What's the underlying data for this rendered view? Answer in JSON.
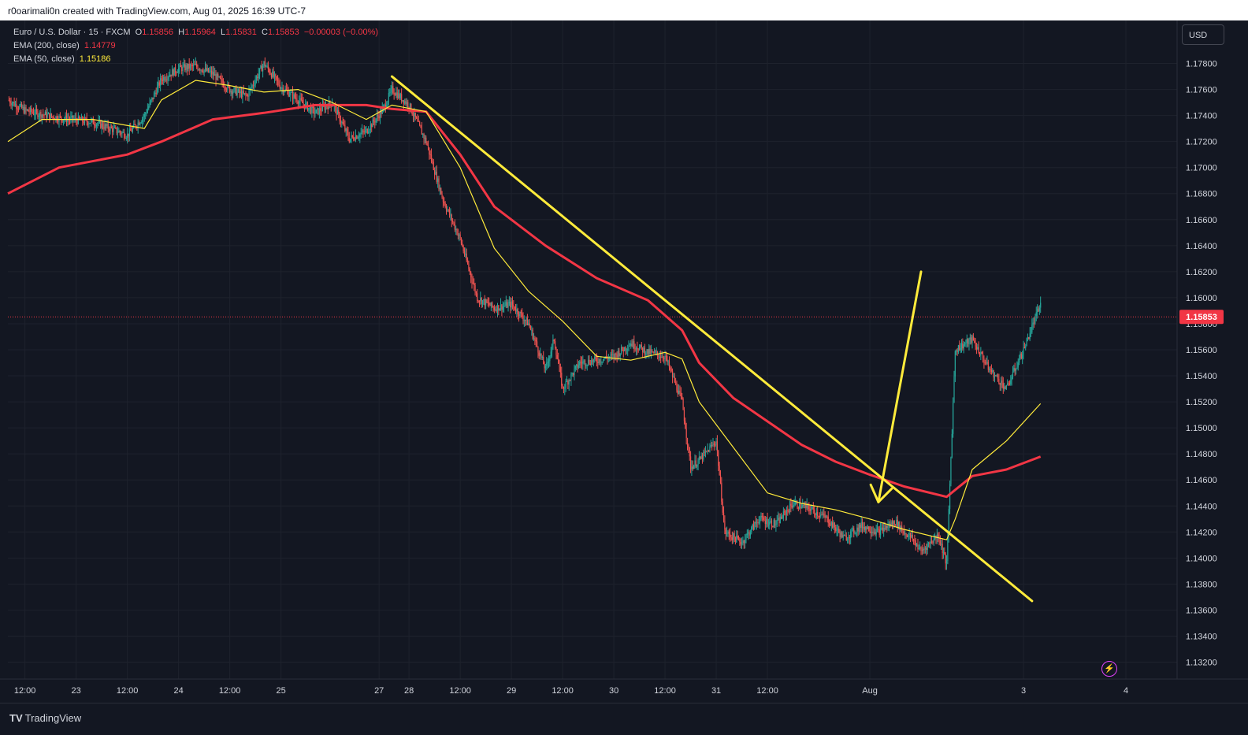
{
  "header": {
    "creator_text": "r0oarimali0n created with TradingView.com, Aug 01, 2025 16:39 UTC-7"
  },
  "legend": {
    "symbol": "Euro / U.S. Dollar · 15 · FXCM",
    "o_label": "O",
    "o_value": "1.15856",
    "h_label": "H",
    "h_value": "1.15964",
    "l_label": "L",
    "l_value": "1.15831",
    "c_label": "C",
    "c_value": "1.15853",
    "change": "−0.00003 (−0.00%)",
    "ema200_label": "EMA (200, close)",
    "ema200_value": "1.14779",
    "ema50_label": "EMA (50, close)",
    "ema50_value": "1.15186"
  },
  "currency_button": "USD",
  "footer": {
    "brand": "TradingView",
    "brand_icon": "tradingview-logo-icon",
    "bolt_icon": "lightning-icon"
  },
  "colors": {
    "background": "#131722",
    "grid": "#1e222d",
    "ema200": "#f23645",
    "ema50": "#ffeb3b",
    "trendline": "#ffeb3b",
    "up": "#26a69a",
    "down": "#ef5350",
    "text": "#d1d4dc",
    "price_tag": "#f23645"
  },
  "chart_data": {
    "type": "candlestick",
    "symbol": "Euro / U.S. Dollar · 15 · FXCM",
    "y_axis": {
      "ticks": [
        "1.17800",
        "1.17600",
        "1.17400",
        "1.17200",
        "1.17000",
        "1.16800",
        "1.16600",
        "1.16400",
        "1.16200",
        "1.16000",
        "1.15800",
        "1.15600",
        "1.15400",
        "1.15200",
        "1.15000",
        "1.14800",
        "1.14600",
        "1.14400",
        "1.14200",
        "1.14000",
        "1.13800",
        "1.13600",
        "1.13400",
        "1.13200"
      ],
      "range": [
        1.1307,
        1.1813
      ]
    },
    "x_axis": {
      "ticks": [
        "12:00",
        "23",
        "12:00",
        "24",
        "12:00",
        "25",
        "27",
        "28",
        "12:00",
        "29",
        "12:00",
        "30",
        "12:00",
        "31",
        "12:00",
        "Aug",
        "3",
        "4"
      ]
    },
    "last_price": "1.15853",
    "price_path": [
      [
        "Jul 22 08:00",
        1.1752
      ],
      [
        "Jul 22 12:00",
        1.1744
      ],
      [
        "Jul 22 20:00",
        1.1738
      ],
      [
        "Jul 23 04:00",
        1.1735
      ],
      [
        "Jul 23 12:00",
        1.1725
      ],
      [
        "Jul 23 16:00",
        1.174
      ],
      [
        "Jul 23 20:00",
        1.1768
      ],
      [
        "Jul 24 00:00",
        1.1776
      ],
      [
        "Jul 24 04:00",
        1.1778
      ],
      [
        "Jul 24 08:00",
        1.1772
      ],
      [
        "Jul 24 12:00",
        1.176
      ],
      [
        "Jul 24 16:00",
        1.1755
      ],
      [
        "Jul 24 20:00",
        1.178
      ],
      [
        "Jul 25 00:00",
        1.1762
      ],
      [
        "Jul 25 04:00",
        1.1752
      ],
      [
        "Jul 25 08:00",
        1.1742
      ],
      [
        "Jul 25 12:00",
        1.175
      ],
      [
        "Jul 25 16:00",
        1.1722
      ],
      [
        "Jul 25 20:00",
        1.1728
      ],
      [
        "Jul 27 18:00",
        1.1745
      ],
      [
        "Jul 27 20:00",
        1.176
      ],
      [
        "Jul 28 00:00",
        1.1748
      ],
      [
        "Jul 28 04:00",
        1.172
      ],
      [
        "Jul 28 08:00",
        1.1675
      ],
      [
        "Jul 28 12:00",
        1.1645
      ],
      [
        "Jul 28 16:00",
        1.16
      ],
      [
        "Jul 28 20:00",
        1.1592
      ],
      [
        "Jul 29 00:00",
        1.1595
      ],
      [
        "Jul 29 04:00",
        1.158
      ],
      [
        "Jul 29 08:00",
        1.1545
      ],
      [
        "Jul 29 10:00",
        1.1568
      ],
      [
        "Jul 29 12:00",
        1.153
      ],
      [
        "Jul 29 16:00",
        1.155
      ],
      [
        "Jul 29 20:00",
        1.1552
      ],
      [
        "Jul 30 00:00",
        1.1555
      ],
      [
        "Jul 30 04:00",
        1.1565
      ],
      [
        "Jul 30 08:00",
        1.1558
      ],
      [
        "Jul 30 12:00",
        1.1555
      ],
      [
        "Jul 30 16:00",
        1.152
      ],
      [
        "Jul 30 18:00",
        1.147
      ],
      [
        "Jul 30 20:00",
        1.1475
      ],
      [
        "Jul 31 00:00",
        1.149
      ],
      [
        "Jul 31 02:00",
        1.142
      ],
      [
        "Jul 31 06:00",
        1.1412
      ],
      [
        "Jul 31 10:00",
        1.143
      ],
      [
        "Jul 31 14:00",
        1.1426
      ],
      [
        "Jul 31 18:00",
        1.1442
      ],
      [
        "Jul 31 22:00",
        1.1438
      ],
      [
        "Aug 01 02:00",
        1.143
      ],
      [
        "Aug 01 06:00",
        1.1415
      ],
      [
        "Aug 01 10:00",
        1.1425
      ],
      [
        "Aug 01 14:00",
        1.142
      ],
      [
        "Aug 01 18:00",
        1.1428
      ],
      [
        "Aug 01 20:00",
        1.142
      ],
      [
        "Aug 01 22:00",
        1.1415
      ],
      [
        "Aug 02 00:00",
        1.1405
      ],
      [
        "Aug 02 04:00",
        1.1418
      ],
      [
        "Aug 02 06:00",
        1.1395
      ],
      [
        "Aug 02 08:00",
        1.156
      ],
      [
        "Aug 02 12:00",
        1.1568
      ],
      [
        "Aug 02 16:00",
        1.1545
      ],
      [
        "Aug 02 20:00",
        1.153
      ],
      [
        "Aug 03 00:00",
        1.156
      ],
      [
        "Aug 03 04:00",
        1.1595
      ]
    ],
    "series": [
      {
        "name": "EMA (200, close)",
        "color": "#f23645",
        "points": [
          [
            "Jul 22 08:00",
            1.168
          ],
          [
            "Jul 22 20:00",
            1.17
          ],
          [
            "Jul 23 12:00",
            1.171
          ],
          [
            "Jul 23 20:00",
            1.172
          ],
          [
            "Jul 24 08:00",
            1.1737
          ],
          [
            "Jul 24 20:00",
            1.1742
          ],
          [
            "Jul 25 08:00",
            1.1748
          ],
          [
            "Jul 25 20:00",
            1.1748
          ],
          [
            "Jul 27 20:00",
            1.1745
          ],
          [
            "Jul 28 04:00",
            1.1743
          ],
          [
            "Jul 28 12:00",
            1.171
          ],
          [
            "Jul 28 20:00",
            1.167
          ],
          [
            "Jul 29 08:00",
            1.164
          ],
          [
            "Jul 29 20:00",
            1.1615
          ],
          [
            "Jul 30 08:00",
            1.1598
          ],
          [
            "Jul 30 16:00",
            1.1575
          ],
          [
            "Jul 30 20:00",
            1.155
          ],
          [
            "Jul 31 04:00",
            1.1523
          ],
          [
            "Jul 31 12:00",
            1.1505
          ],
          [
            "Jul 31 20:00",
            1.1487
          ],
          [
            "Aug 01 04:00",
            1.1474
          ],
          [
            "Aug 01 12:00",
            1.1464
          ],
          [
            "Aug 01 20:00",
            1.1455
          ],
          [
            "Aug 02 06:00",
            1.1447
          ],
          [
            "Aug 02 12:00",
            1.1463
          ],
          [
            "Aug 02 20:00",
            1.1468
          ],
          [
            "Aug 03 04:00",
            1.14779
          ]
        ]
      },
      {
        "name": "EMA (50, close)",
        "color": "#ffeb3b",
        "points": [
          [
            "Jul 22 08:00",
            1.172
          ],
          [
            "Jul 22 16:00",
            1.1737
          ],
          [
            "Jul 23 04:00",
            1.1737
          ],
          [
            "Jul 23 16:00",
            1.173
          ],
          [
            "Jul 23 20:00",
            1.1752
          ],
          [
            "Jul 24 04:00",
            1.1767
          ],
          [
            "Jul 24 12:00",
            1.1763
          ],
          [
            "Jul 24 20:00",
            1.1758
          ],
          [
            "Jul 25 04:00",
            1.176
          ],
          [
            "Jul 25 12:00",
            1.175
          ],
          [
            "Jul 25 20:00",
            1.1737
          ],
          [
            "Jul 27 20:00",
            1.1748
          ],
          [
            "Jul 28 04:00",
            1.1743
          ],
          [
            "Jul 28 12:00",
            1.17
          ],
          [
            "Jul 28 20:00",
            1.1638
          ],
          [
            "Jul 29 04:00",
            1.1605
          ],
          [
            "Jul 29 12:00",
            1.1582
          ],
          [
            "Jul 29 20:00",
            1.1555
          ],
          [
            "Jul 30 04:00",
            1.1552
          ],
          [
            "Jul 30 12:00",
            1.1558
          ],
          [
            "Jul 30 16:00",
            1.1553
          ],
          [
            "Jul 30 20:00",
            1.152
          ],
          [
            "Jul 31 04:00",
            1.1485
          ],
          [
            "Jul 31 12:00",
            1.145
          ],
          [
            "Jul 31 20:00",
            1.1442
          ],
          [
            "Aug 01 04:00",
            1.1437
          ],
          [
            "Aug 01 12:00",
            1.143
          ],
          [
            "Aug 01 20:00",
            1.1422
          ],
          [
            "Aug 02 06:00",
            1.1414
          ],
          [
            "Aug 02 08:00",
            1.143
          ],
          [
            "Aug 02 12:00",
            1.1468
          ],
          [
            "Aug 02 20:00",
            1.149
          ],
          [
            "Aug 03 04:00",
            1.15186
          ]
        ]
      }
    ],
    "annotations": [
      {
        "type": "trendline",
        "from": [
          "Jul 27 20:00",
          1.177
        ],
        "to": [
          "Aug 03 02:00",
          1.1367
        ]
      },
      {
        "type": "arrow",
        "from": [
          "Aug 02 00:00",
          1.162
        ],
        "to": [
          "Aug 01 14:00",
          1.1443
        ]
      }
    ],
    "grid": true,
    "legend_position": "top-left"
  }
}
